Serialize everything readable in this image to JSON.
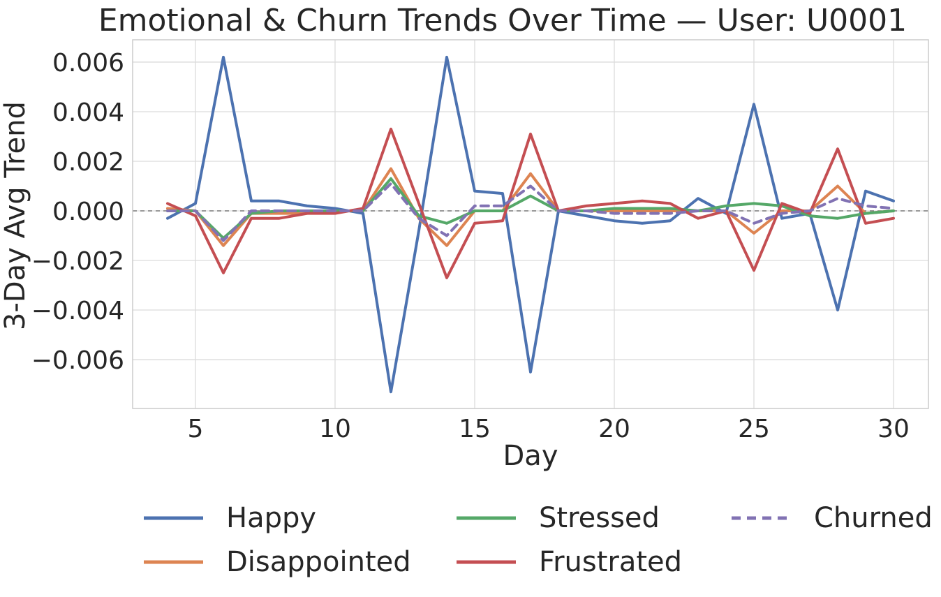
{
  "chart_data": {
    "type": "line",
    "title": "Emotional & Churn Trends Over Time — User: U0001",
    "xlabel": "Day",
    "ylabel": "3-Day Avg Trend",
    "x": [
      4,
      5,
      6,
      7,
      8,
      9,
      10,
      11,
      12,
      13,
      14,
      15,
      16,
      17,
      18,
      19,
      20,
      21,
      22,
      23,
      24,
      25,
      26,
      27,
      28,
      29,
      30
    ],
    "xticks": [
      5,
      10,
      15,
      20,
      25,
      30
    ],
    "yticks": [
      0.006,
      0.004,
      0.002,
      0.0,
      -0.002,
      -0.004,
      -0.006
    ],
    "ytick_labels": [
      "0.006",
      "0.004",
      "0.002",
      "0.000",
      "−0.002",
      "−0.004",
      "−0.006"
    ],
    "xlim": [
      2.75,
      31.25
    ],
    "ylim": [
      -0.00797,
      0.0069
    ],
    "grid": true,
    "zero_line_dashed": true,
    "legend_position": "below",
    "legend_columns": 3,
    "colors": {
      "grid": "#dcdcdc",
      "spine": "#c8c8c8",
      "zero_line": "#7a7a7a",
      "text": "#262626"
    },
    "series": [
      {
        "name": "Happy",
        "color": "#4C72B0",
        "style": "solid",
        "values": [
          -0.0003,
          0.0003,
          0.0062,
          0.0004,
          0.0004,
          0.0002,
          0.0001,
          -0.0001,
          -0.0073,
          -0.0008,
          0.0062,
          0.0008,
          0.0007,
          -0.0065,
          0.0,
          -0.0002,
          -0.0004,
          -0.0005,
          -0.0004,
          0.0005,
          -0.0001,
          0.0043,
          -0.0003,
          -0.0001,
          -0.004,
          0.0008,
          0.0004
        ]
      },
      {
        "name": "Disappointed",
        "color": "#DD8452",
        "style": "solid",
        "values": [
          0.0001,
          0.0,
          -0.0014,
          -0.0001,
          -0.0001,
          -0.0001,
          0.0,
          0.0,
          0.0017,
          -0.0003,
          -0.0014,
          0.0,
          0.0,
          0.0015,
          0.0,
          0.0,
          0.0,
          0.0,
          0.0,
          0.0,
          0.0,
          -0.0009,
          0.0,
          0.0,
          0.001,
          -0.0001,
          0.0
        ]
      },
      {
        "name": "Stressed",
        "color": "#55A868",
        "style": "solid",
        "values": [
          0.0,
          0.0,
          -0.0011,
          -0.0001,
          0.0,
          0.0,
          0.0,
          0.0,
          0.0013,
          -0.0002,
          -0.0005,
          0.0,
          0.0,
          0.0006,
          0.0,
          0.0,
          0.0001,
          0.0001,
          0.0001,
          0.0,
          0.0002,
          0.0003,
          0.0002,
          -0.0002,
          -0.0003,
          -0.0001,
          0.0
        ]
      },
      {
        "name": "Frustrated",
        "color": "#C44E52",
        "style": "solid",
        "values": [
          0.0003,
          -0.0002,
          -0.0025,
          -0.0003,
          -0.0003,
          -0.0001,
          -0.0001,
          0.0001,
          0.0033,
          0.0003,
          -0.0027,
          -0.0005,
          -0.0004,
          0.0031,
          0.0,
          0.0002,
          0.0003,
          0.0004,
          0.0003,
          -0.0003,
          0.0,
          -0.0024,
          0.0003,
          -0.0001,
          0.0025,
          -0.0005,
          -0.0003
        ]
      },
      {
        "name": "Churned",
        "color": "#8172B3",
        "style": "dashed",
        "values": [
          0.0,
          0.0,
          -0.0012,
          0.0,
          0.0,
          0.0,
          0.0,
          0.0,
          0.0011,
          -0.0003,
          -0.001,
          0.0002,
          0.0002,
          0.001,
          0.0,
          0.0,
          -0.0001,
          -0.0001,
          -0.0001,
          0.0,
          0.0,
          -0.0005,
          -0.0001,
          0.0,
          0.0005,
          0.0002,
          0.0001
        ]
      }
    ]
  }
}
